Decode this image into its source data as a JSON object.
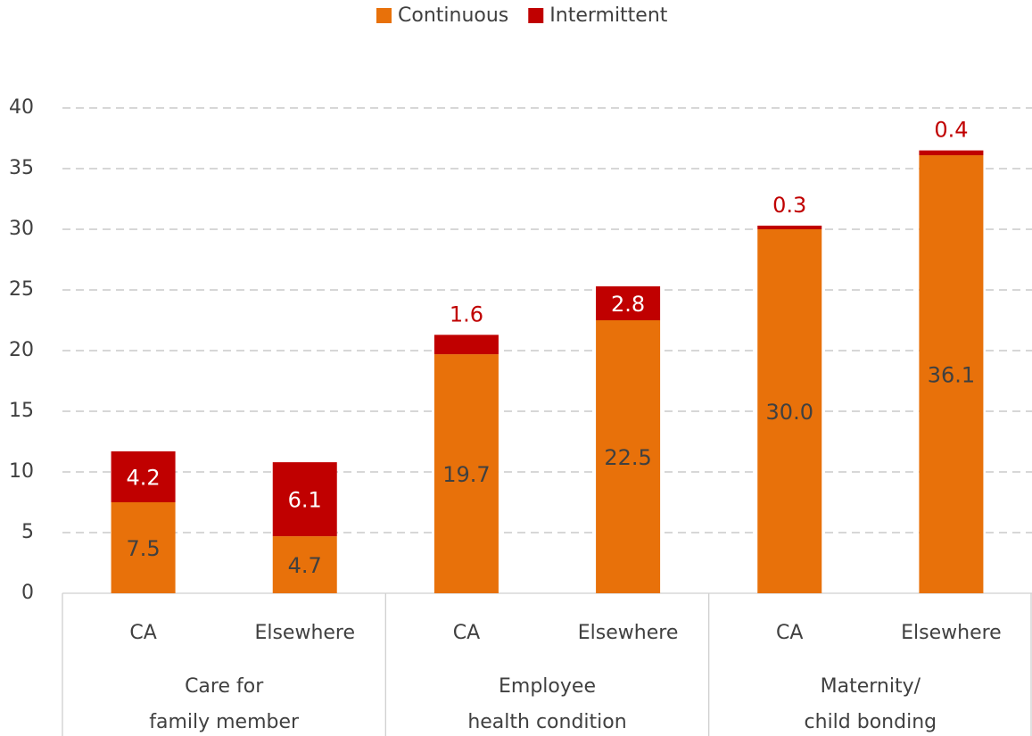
{
  "chart_data": {
    "type": "stacked_bar",
    "categories": [
      "CA",
      "Elsewhere",
      "CA",
      "Elsewhere",
      "CA",
      "Elsewhere"
    ],
    "groups": [
      {
        "lines": [
          "Care for",
          "family member"
        ]
      },
      {
        "lines": [
          "Employee",
          "health condition"
        ]
      },
      {
        "lines": [
          "Maternity/",
          "child bonding"
        ]
      }
    ],
    "series": [
      {
        "name": "Continuous",
        "color": "#e8710a",
        "label_color": "#404040",
        "values": [
          7.5,
          4.7,
          19.7,
          22.5,
          30.0,
          36.1
        ],
        "value_labels": [
          "7.5",
          "4.7",
          "19.7",
          "22.5",
          "30.0",
          "36.1"
        ]
      },
      {
        "name": "Intermittent",
        "color": "#c00000",
        "label_color": "#c00000",
        "values": [
          4.2,
          6.1,
          1.6,
          2.8,
          0.3,
          0.4
        ],
        "value_labels": [
          "4.2",
          "6.1",
          "1.6",
          "2.8",
          "0.3",
          "0.4"
        ]
      }
    ],
    "ylim": [
      0,
      40
    ],
    "yticks": [
      0,
      5,
      10,
      15,
      20,
      25,
      30,
      35,
      40
    ],
    "grid": true,
    "legend": "top"
  }
}
